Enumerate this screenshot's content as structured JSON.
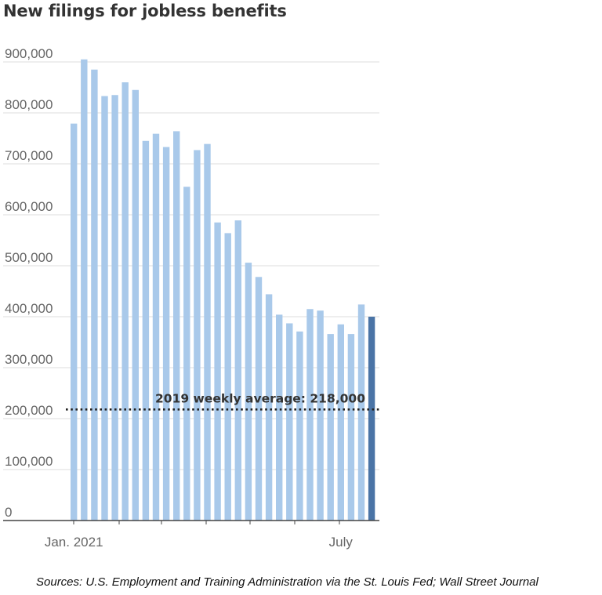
{
  "chart_data": {
    "type": "bar",
    "title": "New filings for jobless benefits",
    "xlabel": "",
    "ylabel": "",
    "ylim": [
      0,
      930000
    ],
    "yticks": [
      0,
      100000,
      200000,
      300000,
      400000,
      500000,
      600000,
      700000,
      800000,
      900000
    ],
    "ytick_labels": [
      "0",
      "100,000",
      "200,000",
      "300,000",
      "400,000",
      "500,000",
      "600,000",
      "700,000",
      "800,000",
      "900,000"
    ],
    "xtick_labels": [
      "Jan. 2021",
      "July"
    ],
    "xtick_label_indices": [
      0,
      26
    ],
    "grid": true,
    "values": [
      779000,
      905000,
      885000,
      833000,
      835000,
      860000,
      845000,
      745000,
      759000,
      733000,
      764000,
      655000,
      727000,
      739000,
      585000,
      564000,
      589000,
      506000,
      478000,
      444000,
      404000,
      387000,
      371000,
      415000,
      412000,
      366000,
      385000,
      366000,
      424000,
      400000
    ],
    "highlight_last": true,
    "colors": {
      "bar": "#a9c9ea",
      "highlight": "#4a74a6",
      "grid": "#dddddd",
      "axis": "#444444"
    },
    "reference_line": {
      "value": 218000,
      "label": "2019 weekly average: 218,000"
    }
  },
  "source_note": "Sources: U.S. Employment and Training Administration via the St. Louis Fed; Wall Street Journal"
}
